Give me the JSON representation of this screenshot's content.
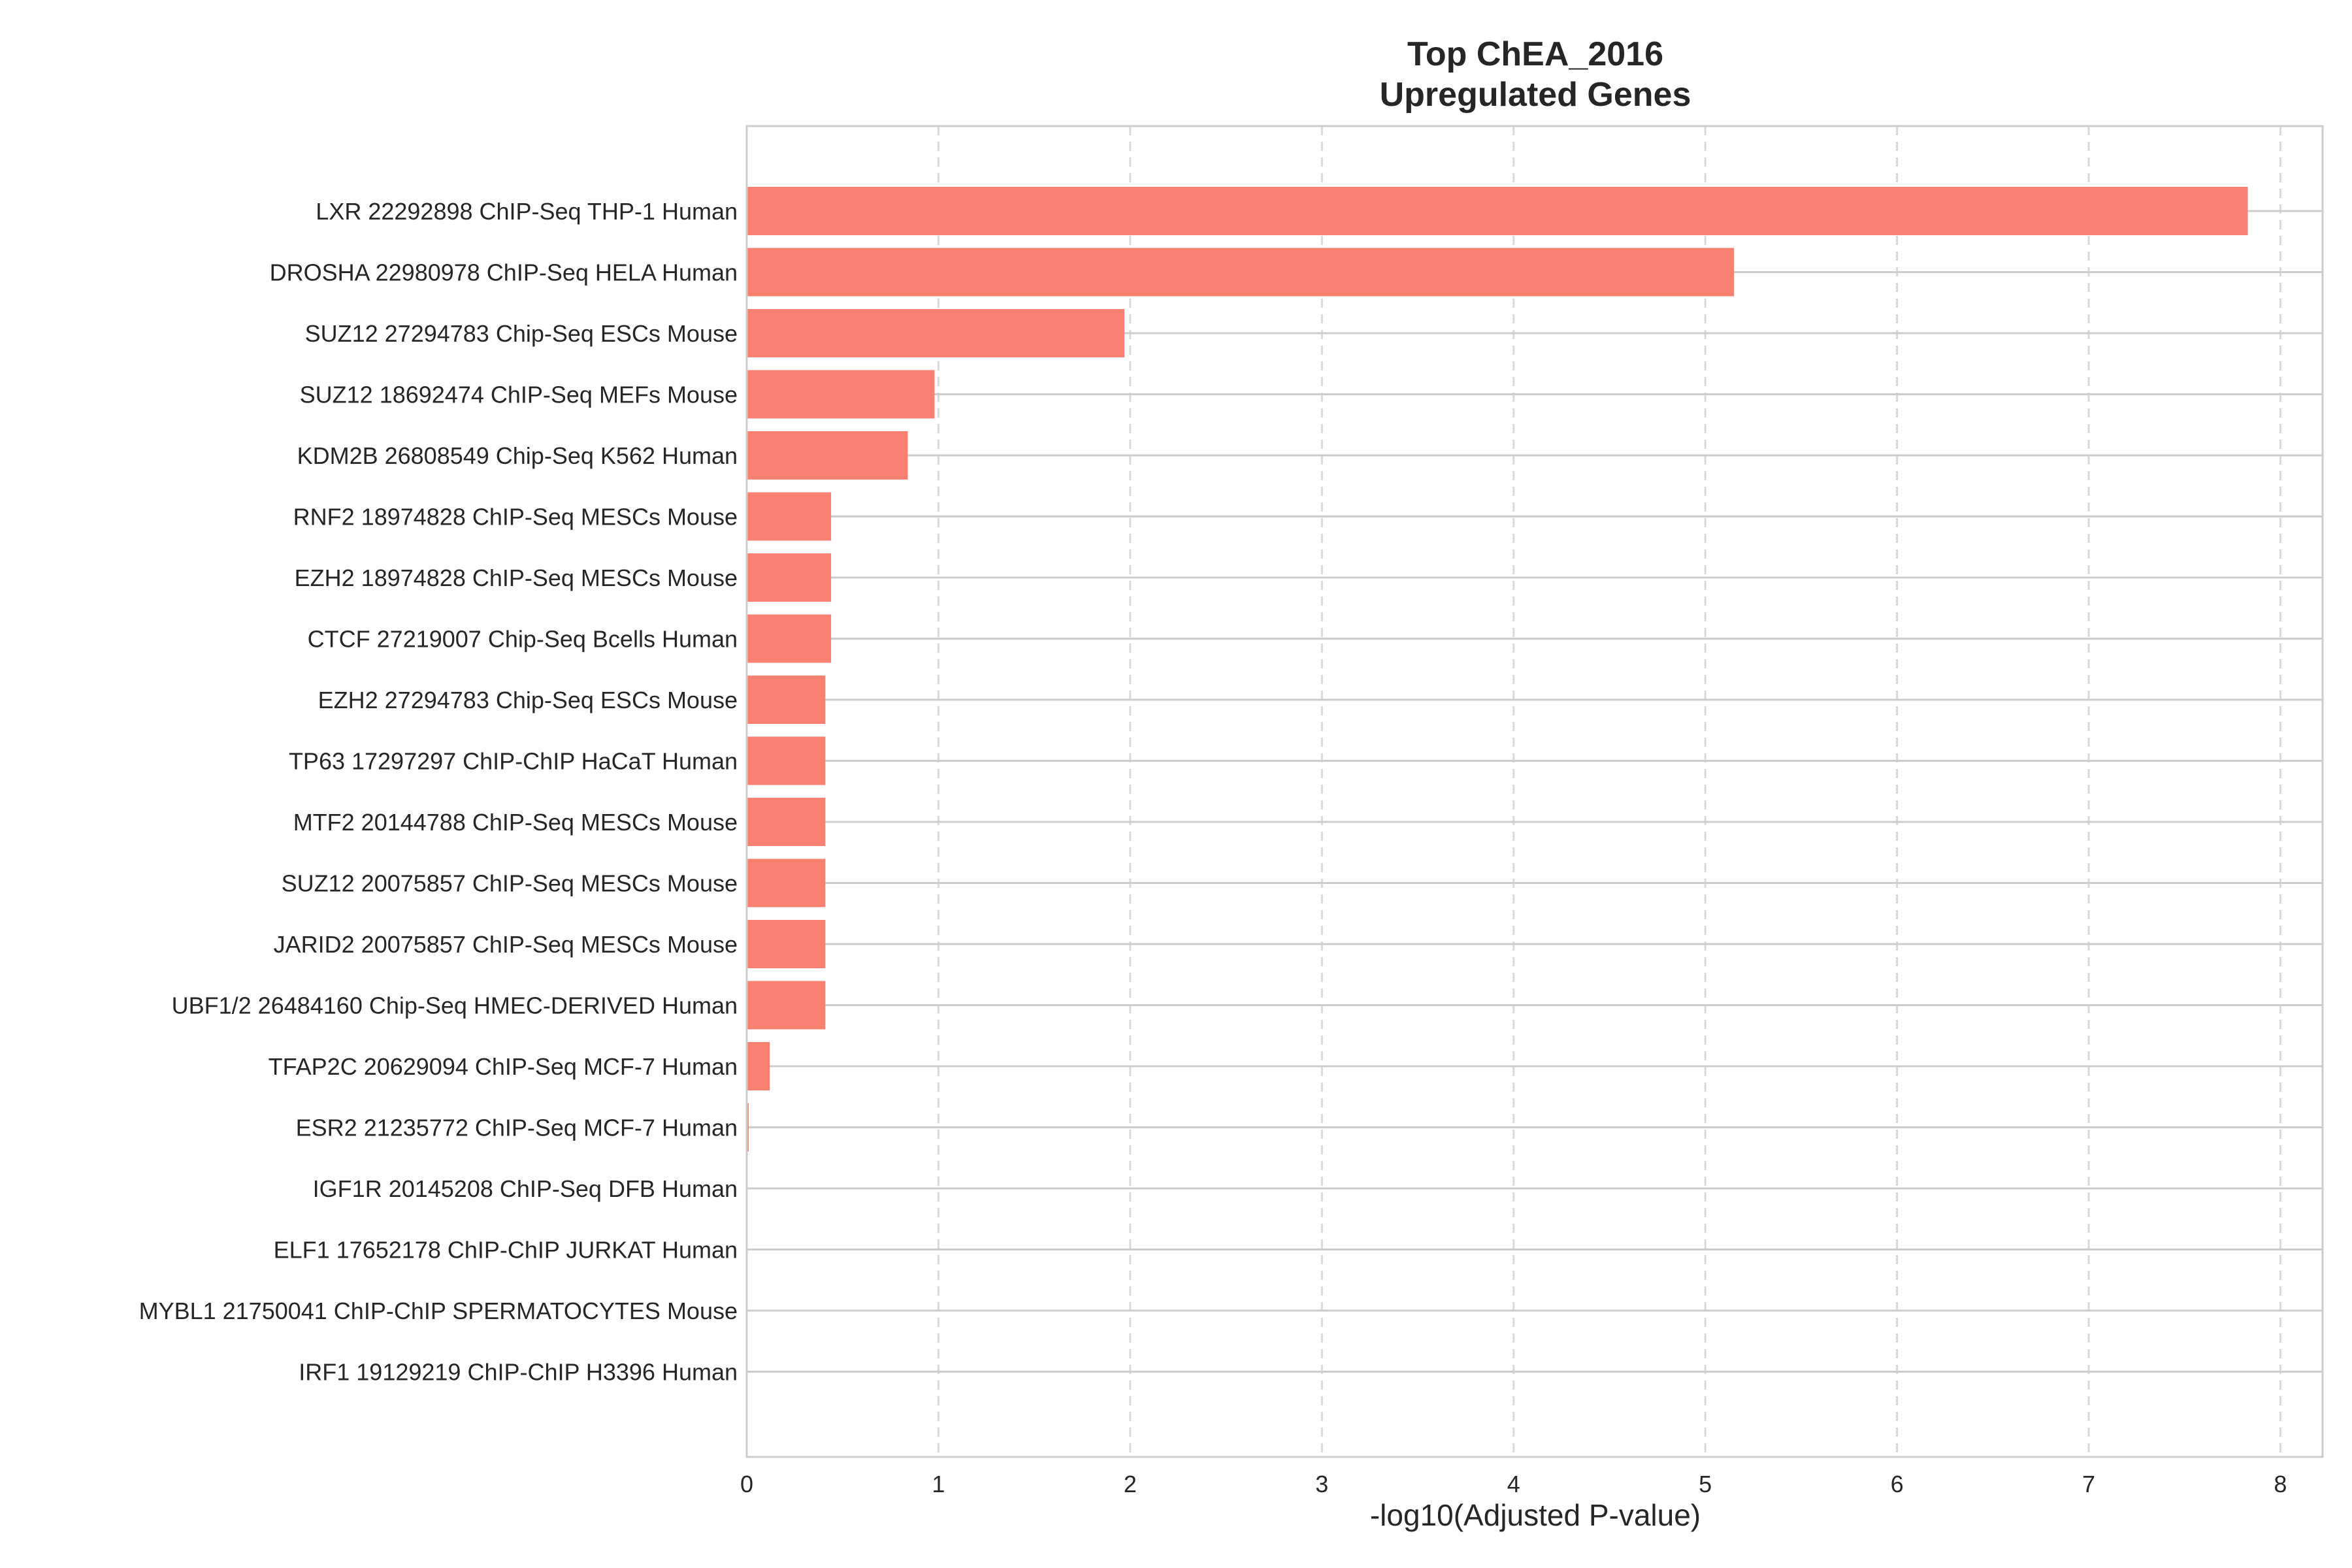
{
  "chart_data": {
    "type": "bar",
    "orientation": "horizontal",
    "title": "Top ChEA_2016",
    "subtitle": "Upregulated Genes",
    "xlabel": "-log10(Adjusted P-value)",
    "ylabel": "",
    "xlim": [
      0,
      8.22
    ],
    "xticks": [
      0,
      1,
      2,
      3,
      4,
      5,
      6,
      7,
      8
    ],
    "grid": true,
    "bar_color": "#fa8072",
    "categories": [
      "LXR 22292898 ChIP-Seq THP-1 Human",
      "DROSHA 22980978 ChIP-Seq HELA Human",
      "SUZ12 27294783 Chip-Seq ESCs Mouse",
      "SUZ12 18692474 ChIP-Seq MEFs Mouse",
      "KDM2B 26808549 Chip-Seq K562 Human",
      "RNF2 18974828 ChIP-Seq MESCs Mouse",
      "EZH2 18974828 ChIP-Seq MESCs Mouse",
      "CTCF 27219007 Chip-Seq Bcells Human",
      "EZH2 27294783 Chip-Seq ESCs Mouse",
      "TP63 17297297 ChIP-ChIP HaCaT Human",
      "MTF2 20144788 ChIP-Seq MESCs Mouse",
      "SUZ12 20075857 ChIP-Seq MESCs Mouse",
      "JARID2 20075857 ChIP-Seq MESCs Mouse",
      "UBF1/2 26484160 Chip-Seq HMEC-DERIVED Human",
      "TFAP2C 20629094 ChIP-Seq MCF-7 Human",
      "ESR2 21235772 ChIP-Seq MCF-7 Human",
      "IGF1R 20145208 ChIP-Seq DFB Human",
      "ELF1 17652178 ChIP-ChIP JURKAT Human",
      "MYBL1 21750041 ChIP-ChIP SPERMATOCYTES Mouse",
      "IRF1 19129219 ChIP-ChIP H3396 Human"
    ],
    "values": [
      7.83,
      5.15,
      1.97,
      0.98,
      0.84,
      0.44,
      0.44,
      0.44,
      0.41,
      0.41,
      0.41,
      0.41,
      0.41,
      0.41,
      0.12,
      0.01,
      0.0,
      0.0,
      0.0,
      0.0
    ]
  }
}
